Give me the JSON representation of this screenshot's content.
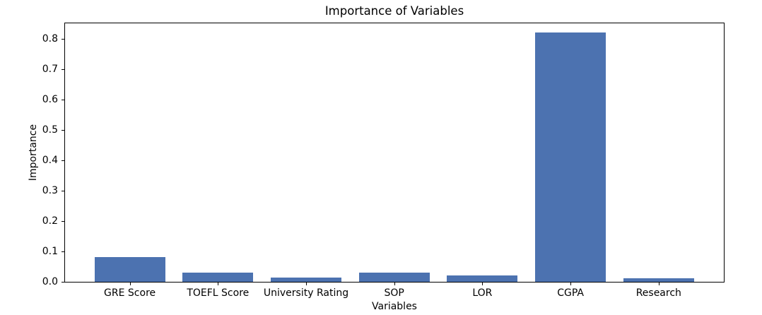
{
  "figure": {
    "background_color": "#ffffff",
    "text_color": "#000000",
    "spine_color": "#000000"
  },
  "chart_data": {
    "type": "bar",
    "title": "Importance of Variables",
    "xlabel": "Variables",
    "ylabel": "Importance",
    "categories": [
      "GRE Score",
      "TOEFL Score",
      "University Rating",
      "SOP",
      "LOR",
      "CGPA",
      "Research"
    ],
    "values": [
      0.081,
      0.03,
      0.014,
      0.03,
      0.02,
      0.819,
      0.012
    ],
    "bar_color": "#4C72B0",
    "ylim": [
      0,
      0.85
    ],
    "yticks": [
      0.0,
      0.1,
      0.2,
      0.3,
      0.4,
      0.5,
      0.6,
      0.7,
      0.8
    ],
    "ytick_labels": [
      "0.0",
      "0.1",
      "0.2",
      "0.3",
      "0.4",
      "0.5",
      "0.6",
      "0.7",
      "0.8"
    ],
    "grid": false,
    "legend": "none"
  }
}
